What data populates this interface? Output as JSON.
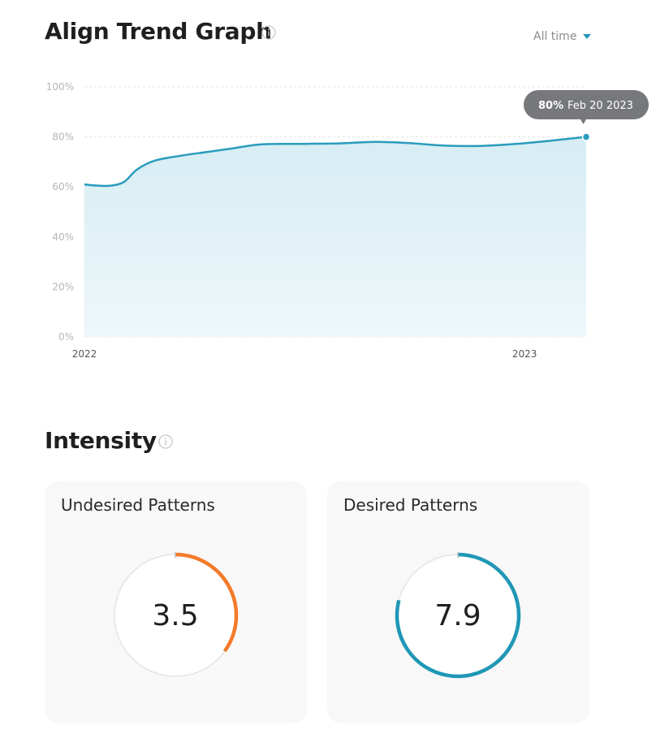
{
  "trend": {
    "title": "Align Trend Graph",
    "range_label": "All time",
    "tooltip": {
      "value": "80%",
      "date": "Feb 20 2023"
    }
  },
  "intensity": {
    "title": "Intensity",
    "cards": [
      {
        "title": "Undesired Patterns",
        "value": "3.5",
        "level": 3.5,
        "max": 10,
        "color": "#f47a2a"
      },
      {
        "title": "Desired Patterns",
        "value": "7.9",
        "level": 7.9,
        "max": 10,
        "color": "#1f97b6"
      }
    ]
  },
  "colors": {
    "line": "#2a9cbd",
    "fill": "#d7eef5",
    "grid": "#e3e3e3",
    "tooltip_bg": "#76787b"
  },
  "chart_data": {
    "type": "area",
    "title": "Align Trend Graph",
    "xlabel": "",
    "ylabel": "",
    "y_ticks": [
      "0%",
      "20%",
      "40%",
      "60%",
      "80%",
      "100%"
    ],
    "x_ticks": [
      "2022",
      "2023"
    ],
    "ylim": [
      0,
      100
    ],
    "xlim": [
      2022.0,
      2023.14
    ],
    "grid": true,
    "series": [
      {
        "x": [
          2022.0,
          2022.03,
          2022.06,
          2022.09,
          2022.12,
          2022.16,
          2022.22,
          2022.28,
          2022.34,
          2022.4,
          2022.48,
          2022.58,
          2022.66,
          2022.74,
          2022.82,
          2022.9,
          2022.98,
          2023.06,
          2023.14
        ],
        "values": [
          61,
          60.5,
          60.5,
          62,
          67,
          70.5,
          72.5,
          74,
          75.5,
          77,
          77.2,
          77.4,
          78,
          77.5,
          76.5,
          76.4,
          77.2,
          78.5,
          80
        ]
      }
    ]
  }
}
